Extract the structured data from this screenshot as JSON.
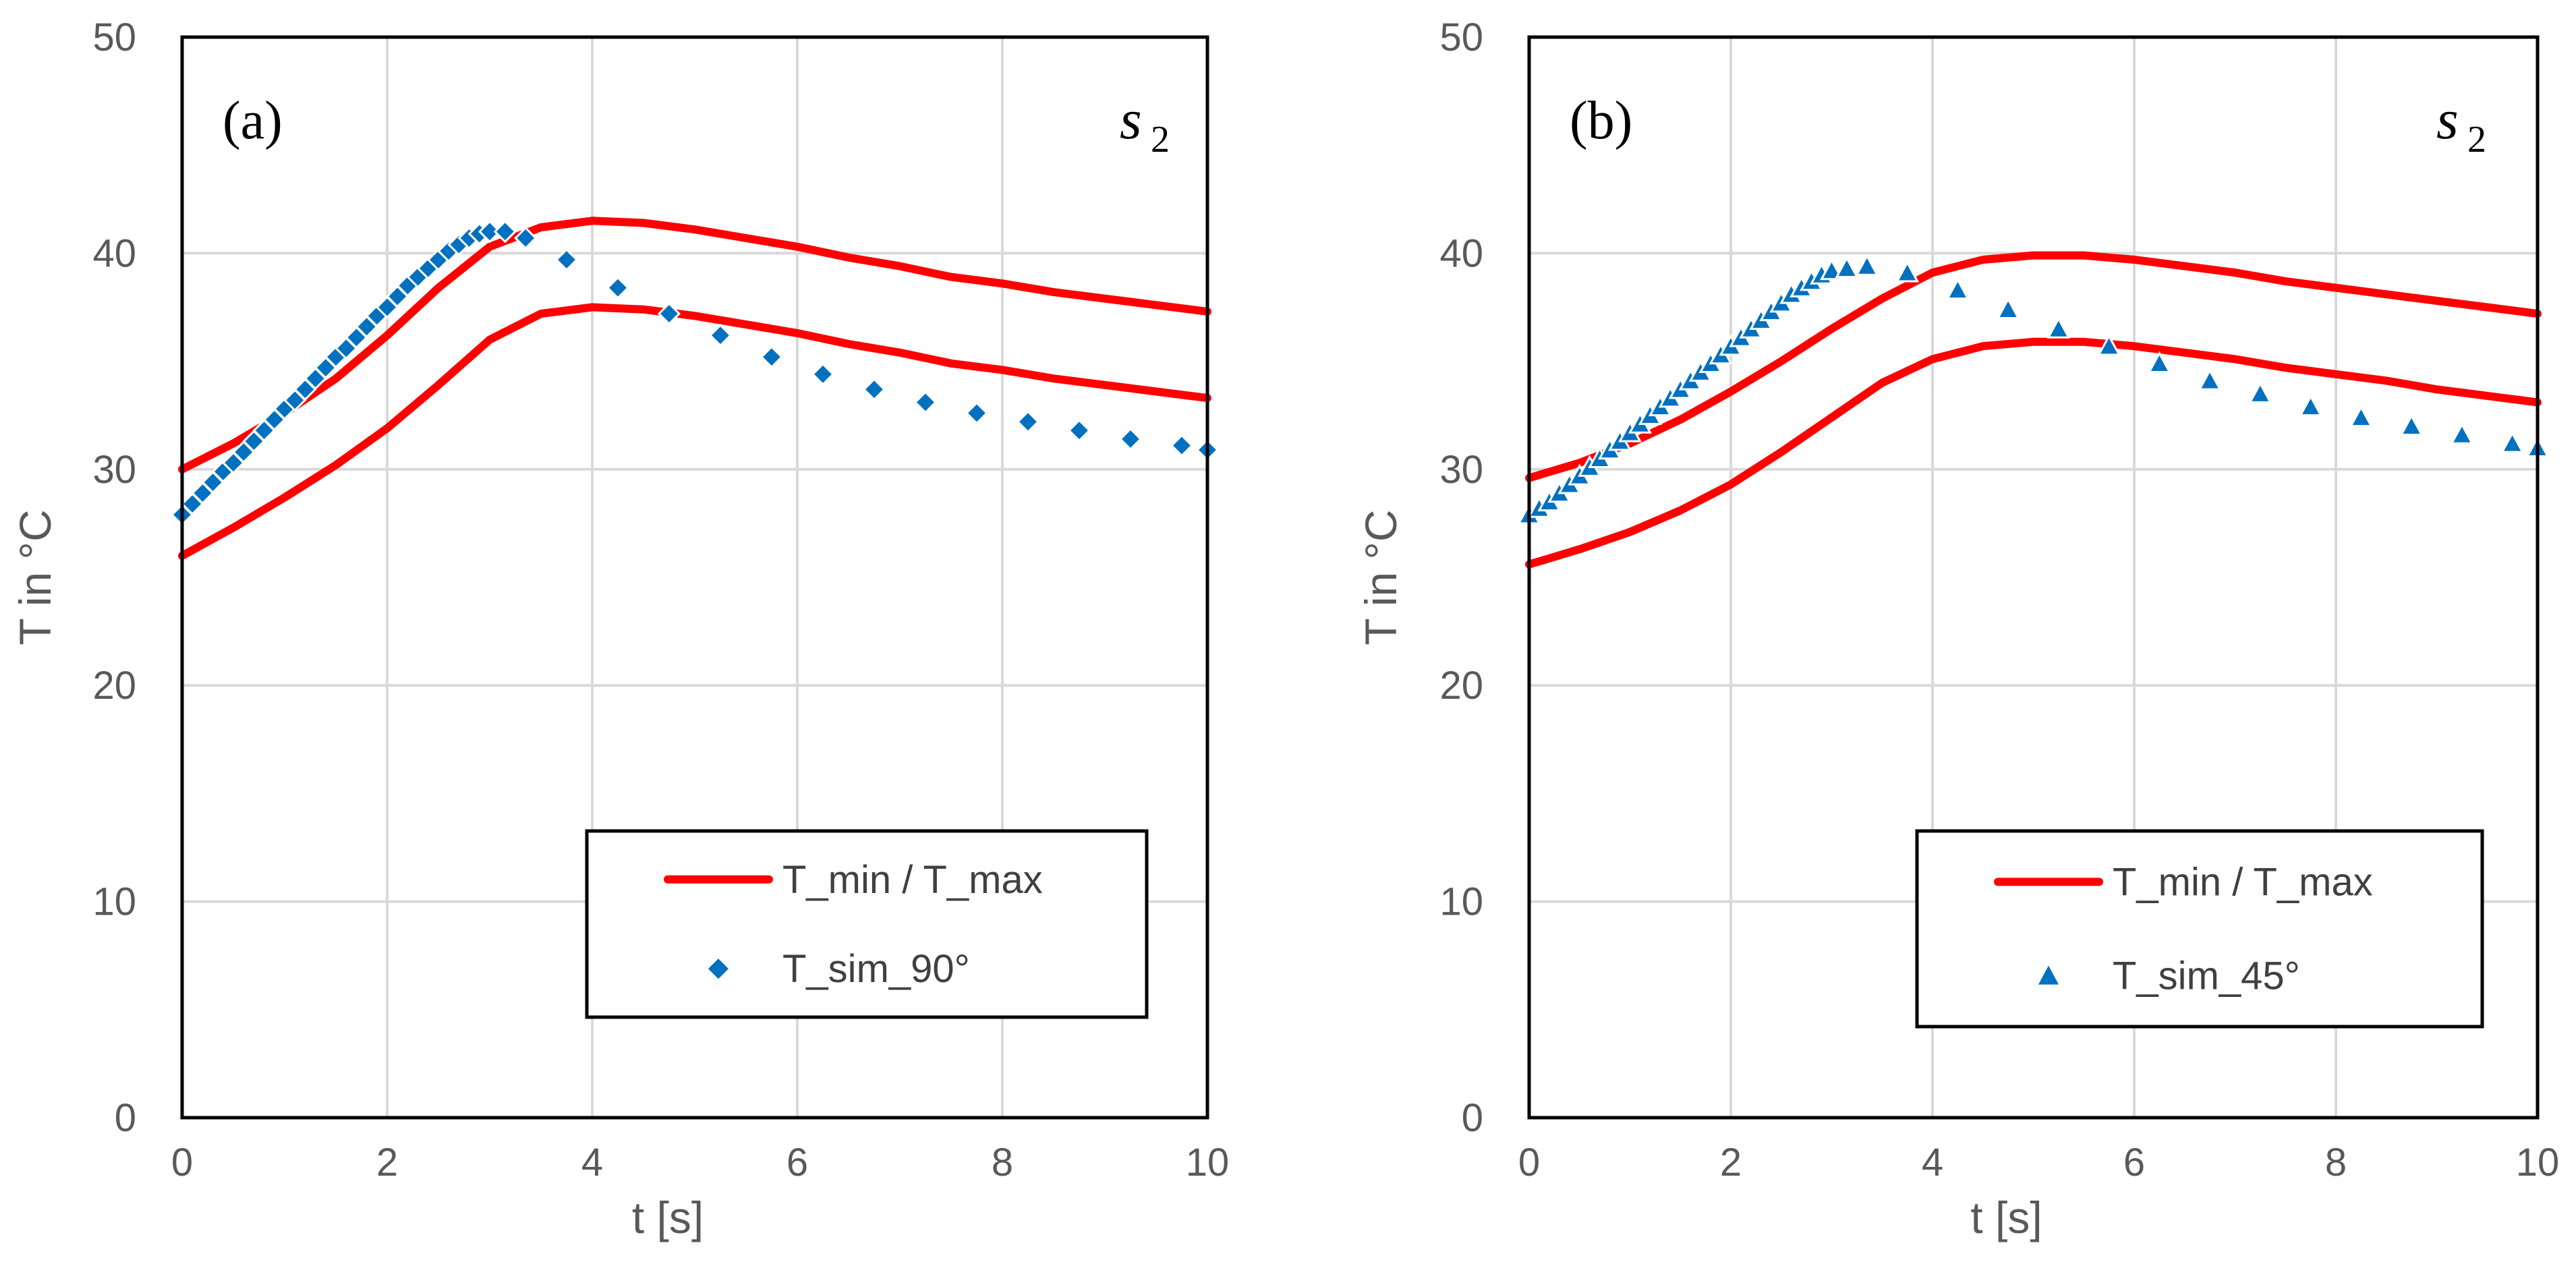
{
  "colors": {
    "tmin_tmax": "#ff0000",
    "sim": "#0070c0",
    "grid": "#d9d9d9",
    "axis": "#000000"
  },
  "chart_data": [
    {
      "type": "scatter",
      "panel_label": "(a)",
      "series_symbol": "s",
      "series_subscript": "2",
      "xlabel": "t [s]",
      "ylabel": "T in °C",
      "xlim": [
        0,
        10
      ],
      "ylim": [
        0,
        50
      ],
      "x_ticks": [
        0,
        2,
        4,
        6,
        8,
        10
      ],
      "y_ticks": [
        0,
        10,
        20,
        30,
        40,
        50
      ],
      "grid": true,
      "legend_position": "bottom-right",
      "series": [
        {
          "name": "T_min / T_max",
          "style": "line",
          "marker": "none",
          "curves": [
            {
              "x": [
                0,
                0.5,
                1,
                1.5,
                2,
                2.5,
                3,
                3.5,
                4,
                4.5,
                5,
                5.5,
                6,
                6.5,
                7,
                7.5,
                8,
                8.5,
                9,
                9.5,
                10
              ],
              "y": [
                30.0,
                31.2,
                32.6,
                34.2,
                36.2,
                38.4,
                40.3,
                41.2,
                41.5,
                41.4,
                41.1,
                40.7,
                40.3,
                39.8,
                39.4,
                38.9,
                38.6,
                38.2,
                37.9,
                37.6,
                37.3
              ]
            },
            {
              "x": [
                0,
                0.5,
                1,
                1.5,
                2,
                2.5,
                3,
                3.5,
                4,
                4.5,
                5,
                5.5,
                6,
                6.5,
                7,
                7.5,
                8,
                8.5,
                9,
                9.5,
                10
              ],
              "y": [
                26.0,
                27.3,
                28.7,
                30.2,
                31.9,
                33.9,
                36.0,
                37.2,
                37.5,
                37.4,
                37.1,
                36.7,
                36.3,
                35.8,
                35.4,
                34.9,
                34.6,
                34.2,
                33.9,
                33.6,
                33.3
              ]
            }
          ]
        },
        {
          "name": "T_sim_90°",
          "style": "markers",
          "marker": "diamond",
          "x": [
            0.0,
            0.1,
            0.2,
            0.3,
            0.4,
            0.5,
            0.6,
            0.7,
            0.8,
            0.9,
            1.0,
            1.1,
            1.2,
            1.3,
            1.4,
            1.5,
            1.6,
            1.7,
            1.8,
            1.9,
            2.0,
            2.1,
            2.2,
            2.3,
            2.4,
            2.5,
            2.6,
            2.7,
            2.8,
            2.9,
            3.0,
            3.15,
            3.35,
            3.75,
            4.25,
            4.75,
            5.25,
            5.75,
            6.25,
            6.75,
            7.25,
            7.75,
            8.25,
            8.75,
            9.25,
            9.75,
            10.0
          ],
          "y": [
            27.9,
            28.4,
            28.9,
            29.4,
            29.9,
            30.3,
            30.8,
            31.3,
            31.8,
            32.3,
            32.8,
            33.2,
            33.7,
            34.2,
            34.7,
            35.2,
            35.6,
            36.1,
            36.6,
            37.1,
            37.5,
            38.0,
            38.5,
            38.9,
            39.3,
            39.7,
            40.1,
            40.4,
            40.7,
            40.9,
            41.0,
            41.0,
            40.7,
            39.7,
            38.4,
            37.2,
            36.2,
            35.2,
            34.4,
            33.7,
            33.1,
            32.6,
            32.2,
            31.8,
            31.4,
            31.1,
            30.9
          ]
        }
      ]
    },
    {
      "type": "scatter",
      "panel_label": "(b)",
      "series_symbol": "s",
      "series_subscript": "2",
      "xlabel": "t [s]",
      "ylabel": "T in °C",
      "xlim": [
        0,
        10
      ],
      "ylim": [
        0,
        50
      ],
      "x_ticks": [
        0,
        2,
        4,
        6,
        8,
        10
      ],
      "y_ticks": [
        0,
        10,
        20,
        30,
        40,
        50
      ],
      "grid": true,
      "legend_position": "bottom-right",
      "series": [
        {
          "name": "T_min / T_max",
          "style": "line",
          "marker": "none",
          "curves": [
            {
              "x": [
                0,
                0.5,
                1,
                1.5,
                2,
                2.5,
                3,
                3.5,
                4,
                4.5,
                5,
                5.5,
                6,
                6.5,
                7,
                7.5,
                8,
                8.5,
                9,
                9.5,
                10
              ],
              "y": [
                29.6,
                30.3,
                31.2,
                32.3,
                33.6,
                35.0,
                36.5,
                37.9,
                39.1,
                39.7,
                39.9,
                39.9,
                39.7,
                39.4,
                39.1,
                38.7,
                38.4,
                38.1,
                37.8,
                37.5,
                37.2
              ]
            },
            {
              "x": [
                0,
                0.5,
                1,
                1.5,
                2,
                2.5,
                3,
                3.5,
                4,
                4.5,
                5,
                5.5,
                6,
                6.5,
                7,
                7.5,
                8,
                8.5,
                9,
                9.5,
                10
              ],
              "y": [
                25.6,
                26.3,
                27.1,
                28.1,
                29.3,
                30.8,
                32.4,
                34.0,
                35.1,
                35.7,
                35.9,
                35.9,
                35.7,
                35.4,
                35.1,
                34.7,
                34.4,
                34.1,
                33.7,
                33.4,
                33.1
              ]
            }
          ]
        },
        {
          "name": "T_sim_45°",
          "style": "markers",
          "marker": "triangle",
          "x": [
            0.0,
            0.1,
            0.2,
            0.3,
            0.4,
            0.5,
            0.6,
            0.7,
            0.8,
            0.9,
            1.0,
            1.1,
            1.2,
            1.3,
            1.4,
            1.5,
            1.6,
            1.7,
            1.8,
            1.9,
            2.0,
            2.1,
            2.2,
            2.3,
            2.4,
            2.5,
            2.6,
            2.7,
            2.8,
            2.9,
            3.0,
            3.15,
            3.35,
            3.75,
            4.25,
            4.75,
            5.25,
            5.75,
            6.25,
            6.75,
            7.25,
            7.75,
            8.25,
            8.75,
            9.25,
            9.75,
            10.0
          ],
          "y": [
            27.9,
            28.2,
            28.5,
            28.9,
            29.3,
            29.7,
            30.1,
            30.5,
            30.9,
            31.3,
            31.7,
            32.1,
            32.5,
            32.9,
            33.3,
            33.7,
            34.1,
            34.5,
            34.9,
            35.3,
            35.7,
            36.1,
            36.5,
            36.9,
            37.3,
            37.7,
            38.1,
            38.4,
            38.7,
            39.0,
            39.2,
            39.3,
            39.4,
            39.1,
            38.3,
            37.4,
            36.5,
            35.7,
            34.9,
            34.1,
            33.5,
            32.9,
            32.4,
            32.0,
            31.6,
            31.2,
            31.0
          ]
        }
      ]
    }
  ]
}
